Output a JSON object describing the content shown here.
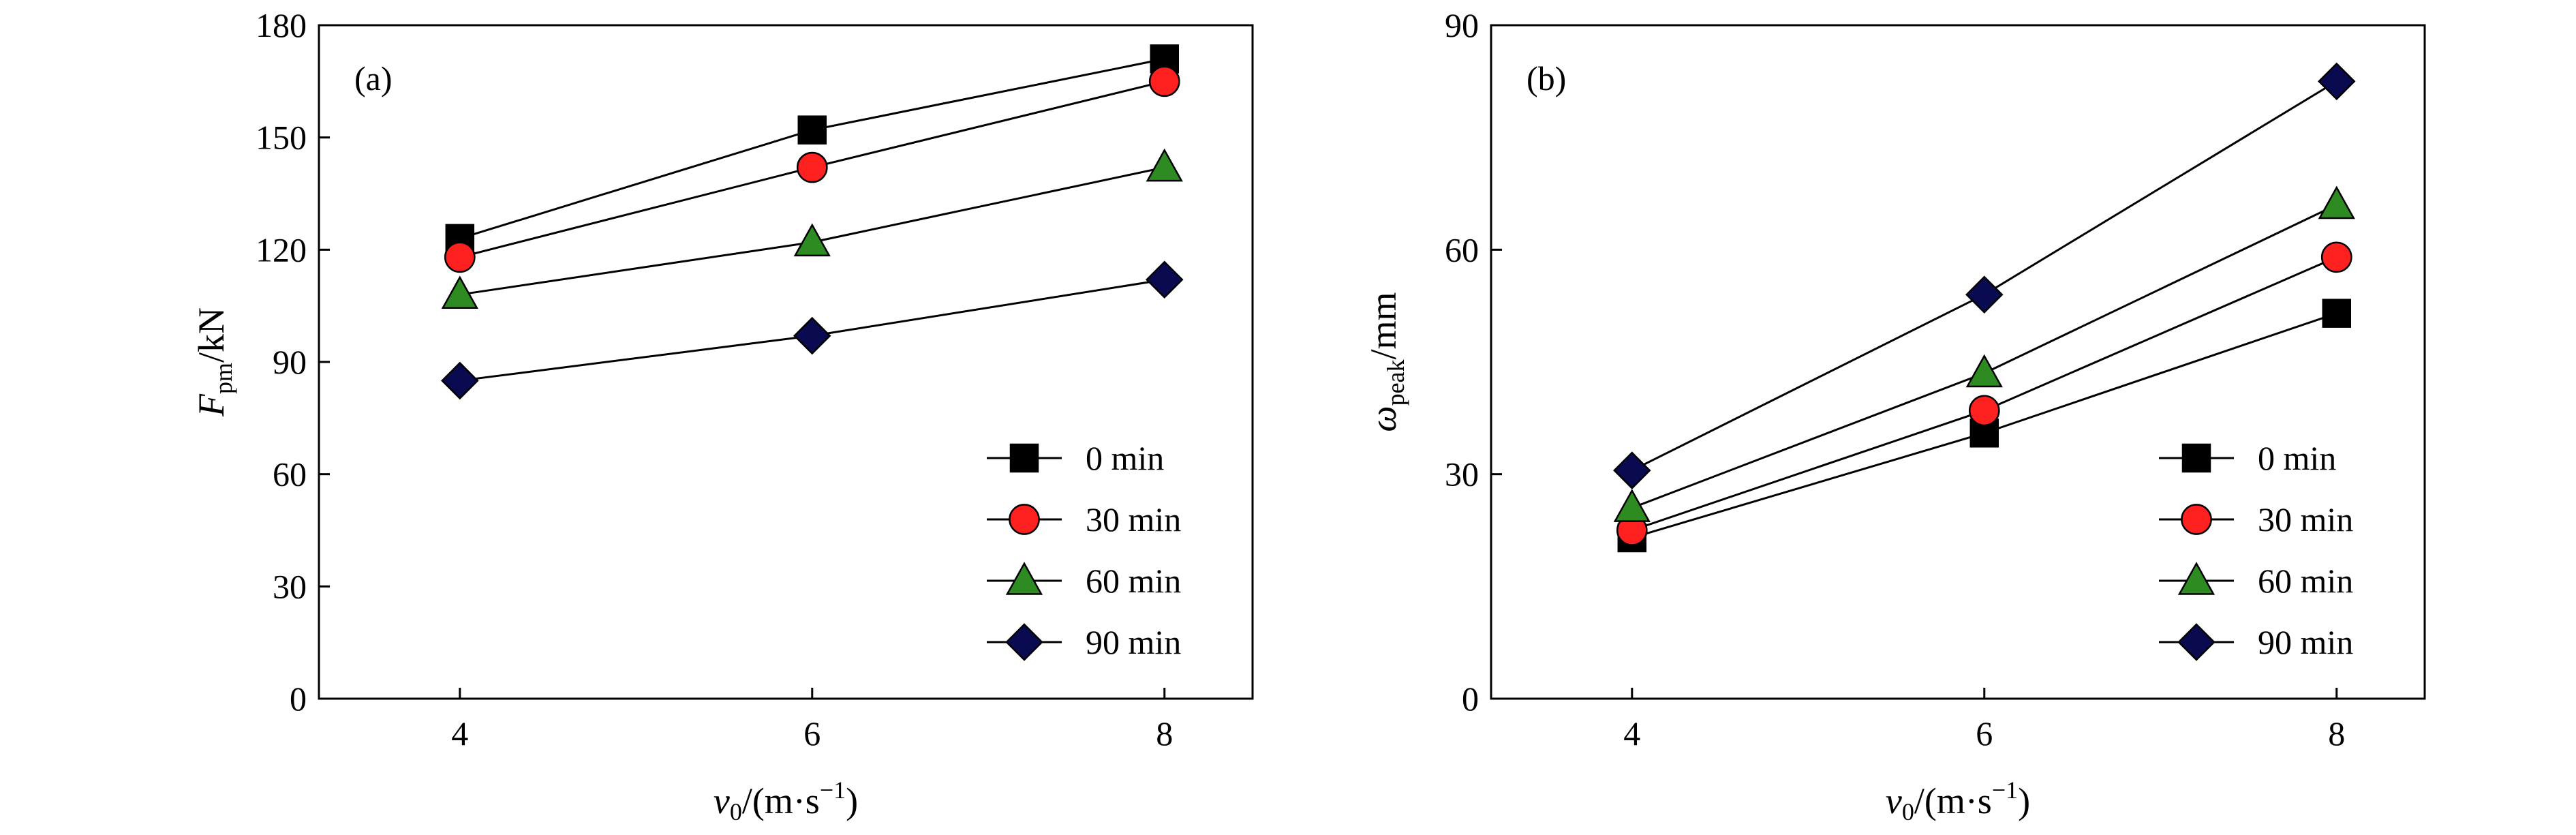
{
  "chart_data": [
    {
      "type": "line",
      "panel_label": "(a)",
      "x": [
        4,
        6,
        8
      ],
      "xticks": [
        "4",
        "6",
        "8"
      ],
      "xlim": [
        3.2,
        8.5
      ],
      "ylim": [
        0,
        180
      ],
      "yticks": [
        "0",
        "30",
        "60",
        "90",
        "120",
        "150",
        "180"
      ],
      "xlabel_main": "v",
      "xlabel_sub": "0",
      "xlabel_rest": "/(m·s",
      "xlabel_sup": "−1",
      "xlabel_end": ")",
      "ylabel_main": "F",
      "ylabel_sub": "pm",
      "ylabel_rest": "/kN",
      "legend_position": "bottom-right",
      "series": [
        {
          "name": "0 min",
          "marker": "square",
          "color": "#000000",
          "values": [
            123,
            152,
            171
          ]
        },
        {
          "name": "30 min",
          "marker": "circle",
          "color": "#ff2020",
          "values": [
            118,
            142,
            165
          ]
        },
        {
          "name": "60 min",
          "marker": "triangle",
          "color": "#2e8b22",
          "values": [
            108,
            122,
            142
          ]
        },
        {
          "name": "90 min",
          "marker": "diamond",
          "color": "#0a0a50",
          "values": [
            85,
            97,
            112
          ]
        }
      ]
    },
    {
      "type": "line",
      "panel_label": "(b)",
      "x": [
        4,
        6,
        8
      ],
      "xticks": [
        "4",
        "6",
        "8"
      ],
      "xlim": [
        3.2,
        8.5
      ],
      "ylim": [
        0,
        90
      ],
      "yticks": [
        "0",
        "30",
        "60",
        "90"
      ],
      "xlabel_main": "v",
      "xlabel_sub": "0",
      "xlabel_rest": "/(m·s",
      "xlabel_sup": "−1",
      "xlabel_end": ")",
      "ylabel_main": "ω",
      "ylabel_sub": "peak",
      "ylabel_rest": "/mm",
      "legend_position": "bottom-right",
      "series": [
        {
          "name": "0 min",
          "marker": "square",
          "color": "#000000",
          "values": [
            21.5,
            35.5,
            51.5
          ]
        },
        {
          "name": "30 min",
          "marker": "circle",
          "color": "#ff2020",
          "values": [
            22.5,
            38.5,
            59
          ]
        },
        {
          "name": "60 min",
          "marker": "triangle",
          "color": "#2e8b22",
          "values": [
            25.5,
            43.5,
            66
          ]
        },
        {
          "name": "90 min",
          "marker": "diamond",
          "color": "#0a0a50",
          "values": [
            30.5,
            54,
            82.5
          ]
        }
      ]
    }
  ]
}
